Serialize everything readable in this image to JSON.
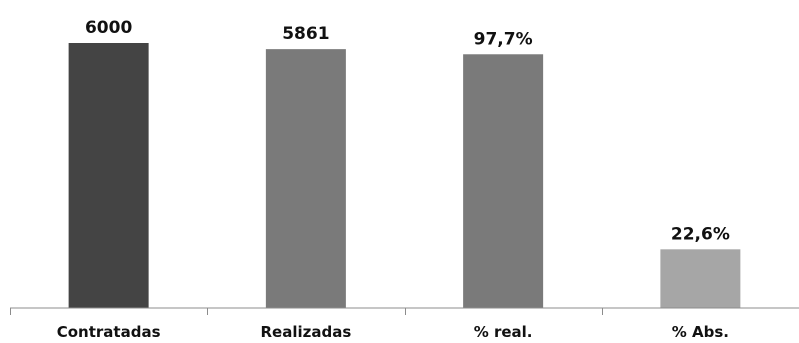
{
  "chart_data": {
    "type": "bar",
    "categories": [
      "Contratadas",
      "Realizadas",
      "% real.",
      "% Abs."
    ],
    "values": [
      6000,
      5861,
      97.7,
      22.6
    ],
    "data_labels": [
      "6000",
      "5861",
      "97,7%",
      "22,6%"
    ],
    "bar_colors": [
      "#444444",
      "#7a7a7a",
      "#7a7a7a",
      "#a6a6a6"
    ],
    "ylim": [
      0,
      6000
    ],
    "title": "",
    "xlabel": "",
    "ylabel": "",
    "grid": false,
    "legend": "none"
  }
}
